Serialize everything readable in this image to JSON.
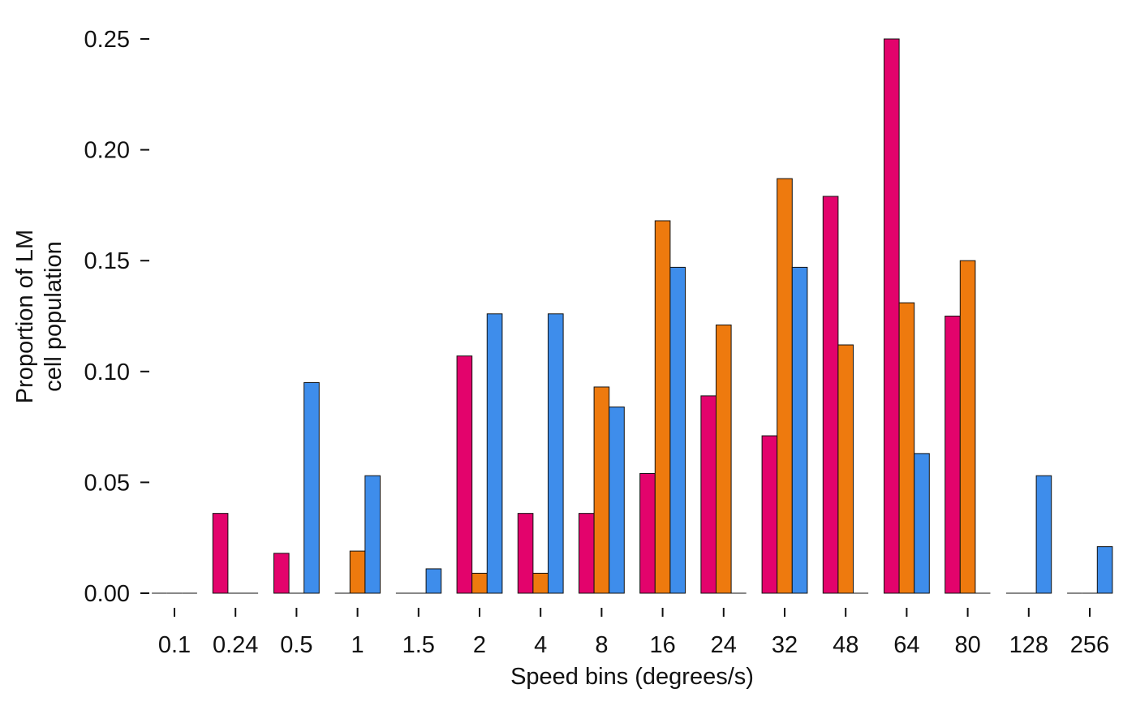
{
  "chart_data": {
    "type": "bar",
    "title": "",
    "xlabel": "Speed bins (degrees/s)",
    "ylabel_lines": [
      "Proportion of LM",
      "cell population"
    ],
    "ylim": [
      0,
      0.25
    ],
    "yticks": [
      "0.00",
      "0.05",
      "0.10",
      "0.15",
      "0.20",
      "0.25"
    ],
    "grid": false,
    "legend": "none",
    "categories": [
      "0.1",
      "0.24",
      "0.5",
      "1",
      "1.5",
      "2",
      "4",
      "8",
      "16",
      "24",
      "32",
      "48",
      "64",
      "80",
      "128",
      "256"
    ],
    "series": [
      {
        "color": "#E3036C",
        "values": [
          0,
          0.036,
          0.018,
          0,
          0,
          0.107,
          0.036,
          0.036,
          0.054,
          0.089,
          0.071,
          0.179,
          0.25,
          0.125,
          0,
          0
        ]
      },
      {
        "color": "#EE7A0E",
        "values": [
          0,
          0,
          0,
          0.019,
          0,
          0.009,
          0.009,
          0.093,
          0.168,
          0.121,
          0.187,
          0.112,
          0.131,
          0.15,
          0,
          0
        ]
      },
      {
        "color": "#3E8DEB",
        "values": [
          0,
          0,
          0.095,
          0.053,
          0.011,
          0.126,
          0.126,
          0.084,
          0.147,
          0,
          0.147,
          0,
          0.063,
          0,
          0.053,
          0.021
        ]
      }
    ]
  }
}
